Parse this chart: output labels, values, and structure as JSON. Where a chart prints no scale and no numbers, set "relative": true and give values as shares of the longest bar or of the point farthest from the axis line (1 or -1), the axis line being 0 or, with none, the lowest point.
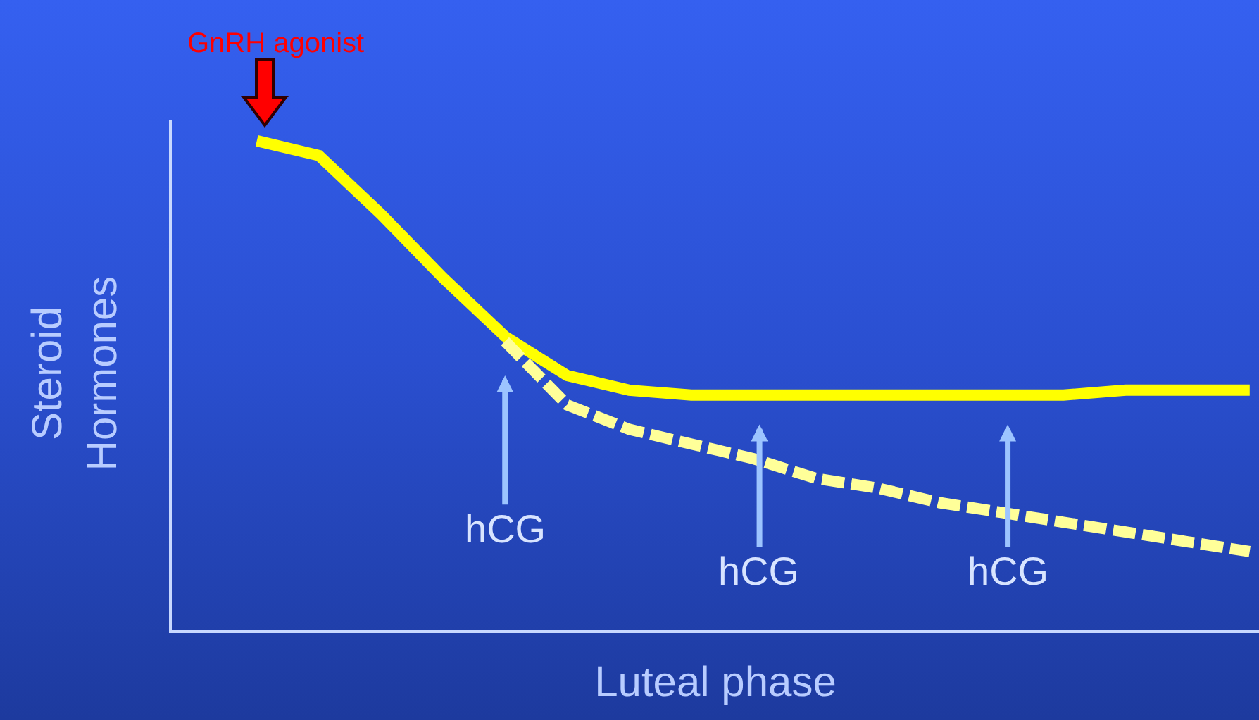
{
  "chart_data": {
    "type": "line",
    "relative": true,
    "xlabel": "Luteal phase",
    "ylabel": "Steroid\nHormones",
    "categories": [
      null,
      null,
      null,
      null,
      null,
      null,
      null,
      null,
      null,
      null,
      null,
      null,
      null,
      null,
      null,
      null,
      null
    ],
    "grid": false,
    "marker": "none",
    "series": [
      {
        "color": "#ffff00",
        "line_style": "solid",
        "values": [
          1,
          0.97,
          0.85,
          0.72,
          0.6,
          0.52,
          0.49,
          0.48,
          0.48,
          0.48,
          0.48,
          0.48,
          0.48,
          0.48,
          0.49,
          0.49,
          0.49
        ]
      },
      {
        "color": "#ffff99",
        "line_style": "dashed",
        "values": [
          null,
          null,
          null,
          null,
          0.59,
          0.46,
          0.41,
          0.38,
          0.35,
          0.31,
          0.29,
          0.26,
          0.24,
          0.22,
          0.2,
          0.18,
          0.16
        ]
      }
    ],
    "annotations": [
      "GnRH agonist",
      "hCG",
      "hCG",
      "hCG"
    ]
  }
}
